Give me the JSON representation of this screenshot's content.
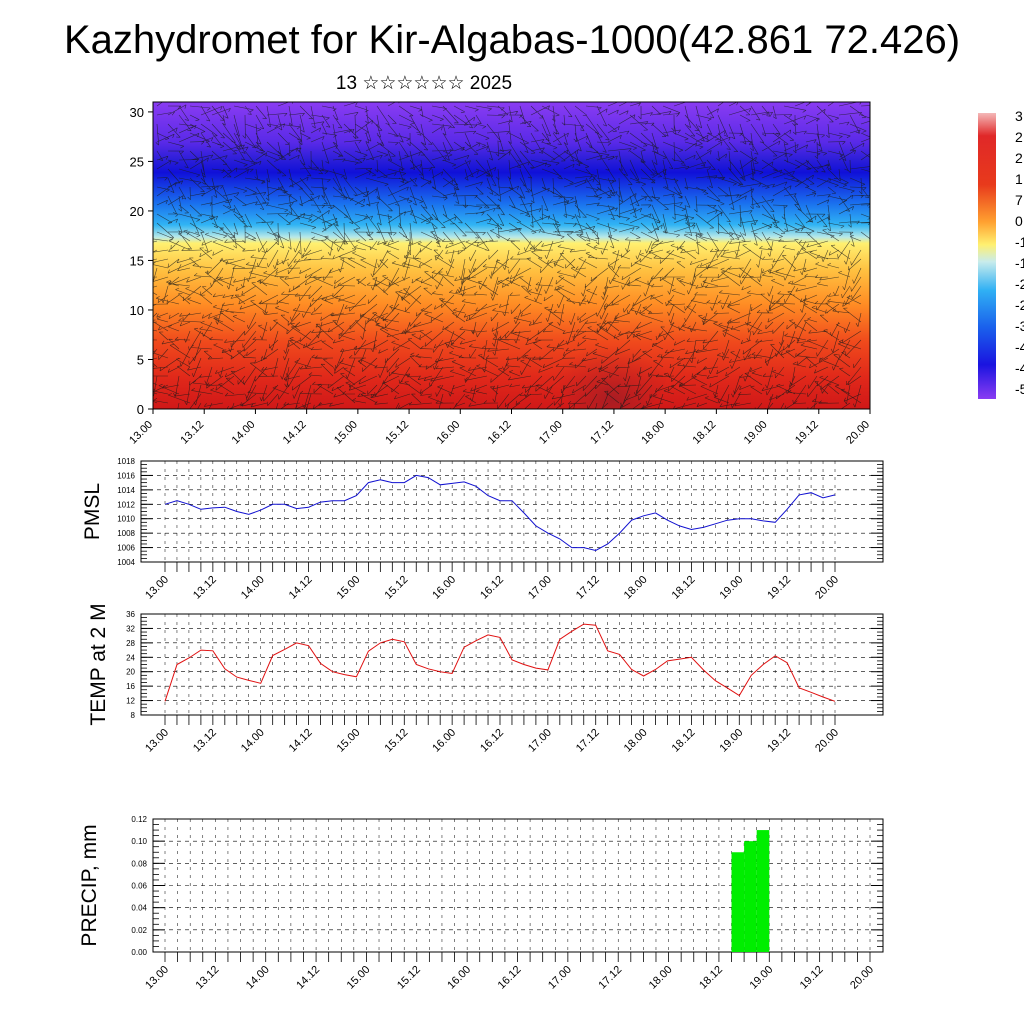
{
  "page": {
    "title": "Kazhydromet for Kir-Algabas-1000(42.861 72.426)",
    "subtitle": "13 ☆☆☆☆☆☆ 2025"
  },
  "chart_data": [
    {
      "type": "heatmap",
      "name": "cross-section",
      "x_ticks": [
        "13.00",
        "13.12",
        "14.00",
        "14.12",
        "15.00",
        "15.12",
        "16.00",
        "16.12",
        "17.00",
        "17.12",
        "18.00",
        "18.12",
        "19.00",
        "19.12",
        "20.00"
      ],
      "y_ticks": [
        "0",
        "5",
        "10",
        "15",
        "20",
        "25",
        "30"
      ],
      "ylim": [
        0,
        31
      ],
      "colorbar_labels": [
        "3",
        "2",
        "2",
        "1",
        "7",
        "0",
        "-1",
        "-1",
        "-2",
        "-2",
        "-3",
        "-4",
        "-4",
        "-5"
      ],
      "colors": [
        "#7a2bf0",
        "#2b1ee6",
        "#1f86f2",
        "#ffee66",
        "#ffa030",
        "#e8301e",
        "#b0201a"
      ]
    },
    {
      "type": "line",
      "ylabel": "PMSL",
      "ylim": [
        1004,
        1018
      ],
      "y_ticks": [
        "1004",
        "1006",
        "1008",
        "1010",
        "1012",
        "1014",
        "1016",
        "1018"
      ],
      "x_ticks": [
        "13.00",
        "13.12",
        "14.00",
        "14.12",
        "15.00",
        "15.12",
        "16.00",
        "16.12",
        "17.00",
        "17.12",
        "18.00",
        "18.12",
        "19.00",
        "19.12",
        "20.00"
      ],
      "series": [
        {
          "color": "#1010d0",
          "values": [
            1012.0,
            1012.5,
            1012.0,
            1011.3,
            1011.5,
            1011.6,
            1011.0,
            1010.6,
            1011.2,
            1012.0,
            1012.0,
            1011.4,
            1011.6,
            1012.3,
            1012.5,
            1012.5,
            1013.2,
            1015.0,
            1015.4,
            1015.0,
            1015.0,
            1016.0,
            1015.7,
            1014.7,
            1014.9,
            1015.1,
            1014.5,
            1013.2,
            1012.5,
            1012.5,
            1010.8,
            1009.0,
            1008.0,
            1007.2,
            1006.0,
            1006.0,
            1005.6,
            1006.5,
            1008.0,
            1009.8,
            1010.4,
            1010.8,
            1009.8,
            1009.0,
            1008.5,
            1008.8,
            1009.3,
            1009.8,
            1010.0,
            1010.0,
            1009.7,
            1009.5,
            1011.3,
            1013.3,
            1013.6,
            1012.9,
            1013.3
          ]
        }
      ]
    },
    {
      "type": "line",
      "ylabel": "TEMP at 2 M",
      "ylim": [
        8,
        36
      ],
      "y_ticks": [
        "8",
        "12",
        "16",
        "20",
        "24",
        "28",
        "32",
        "36"
      ],
      "x_ticks": [
        "13.00",
        "13.12",
        "14.00",
        "14.12",
        "15.00",
        "15.12",
        "16.00",
        "16.12",
        "17.00",
        "17.12",
        "18.00",
        "18.12",
        "19.00",
        "19.12",
        "20.00"
      ],
      "series": [
        {
          "color": "#e01010",
          "values": [
            11.8,
            22.0,
            23.8,
            26.0,
            25.8,
            20.8,
            18.5,
            17.6,
            16.8,
            24.5,
            26.2,
            28.0,
            27.2,
            22.3,
            20.0,
            19.2,
            18.6,
            25.7,
            28.0,
            29.0,
            28.3,
            22.0,
            20.8,
            20.0,
            19.5,
            26.8,
            28.6,
            30.2,
            29.5,
            23.3,
            22.0,
            21.0,
            20.5,
            29.0,
            31.2,
            33.2,
            32.9,
            25.8,
            24.8,
            20.6,
            18.8,
            20.6,
            23.0,
            23.5,
            24.0,
            20.5,
            17.5,
            15.5,
            13.4,
            19.0,
            22.0,
            24.4,
            22.5,
            15.5,
            14.3,
            13.0,
            11.8
          ]
        }
      ]
    },
    {
      "type": "bar",
      "ylabel": "PRECIP, mm",
      "ylim": [
        0,
        0.12
      ],
      "y_ticks": [
        "0.00",
        "0.02",
        "0.04",
        "0.06",
        "0.08",
        "0.10",
        "0.12"
      ],
      "x_ticks": [
        "13.00",
        "13.12",
        "14.00",
        "14.12",
        "15.00",
        "15.12",
        "16.00",
        "16.12",
        "17.00",
        "17.12",
        "18.00",
        "18.12",
        "19.00",
        "19.12",
        "20.00"
      ],
      "bar_color": "#00ee00",
      "bars": [
        {
          "x_step": 46,
          "value": 0.09
        },
        {
          "x_step": 47,
          "value": 0.1
        },
        {
          "x_step": 48,
          "value": 0.11
        }
      ]
    }
  ]
}
